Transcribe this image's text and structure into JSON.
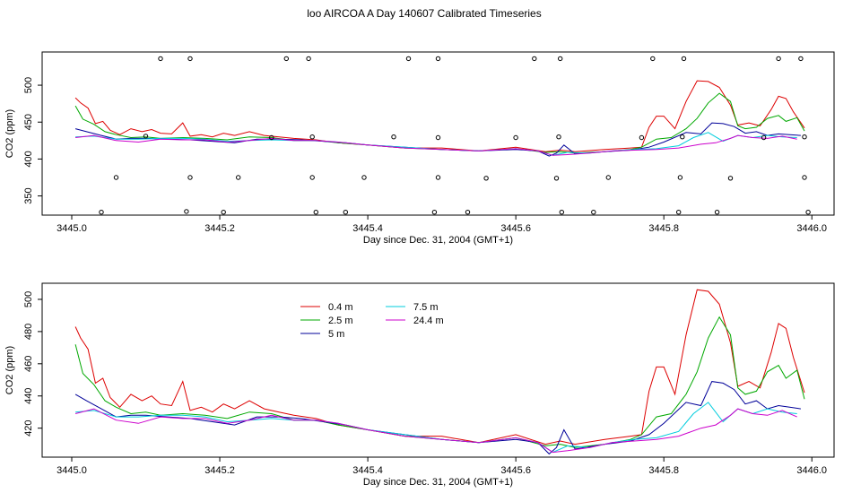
{
  "title": "loo AIRCOA A  Day 140607  Calibrated Timeseries",
  "colors": {
    "0.4 m": "#dd0000",
    "2.5 m": "#00a800",
    "5 m": "#000099",
    "7.5 m": "#00ccdd",
    "24.4 m": "#cc00cc"
  },
  "chart_data": [
    {
      "type": "line",
      "panel": "top",
      "xlabel": "Day since Dec. 31, 2004 (GMT+1)",
      "ylabel": "CO2 (ppm)",
      "xlim": [
        3444.96,
        3446.03
      ],
      "ylim": [
        324,
        545
      ],
      "xticks": [
        3445.0,
        3445.2,
        3445.4,
        3445.6,
        3445.8,
        3446.0
      ],
      "xtick_labels": [
        "3445.0",
        "3445.2",
        "3445.4",
        "3445.6",
        "3445.8",
        "3446.0"
      ],
      "yticks": [
        350,
        400,
        450,
        500
      ],
      "ytick_labels": [
        "350",
        "400",
        "450",
        "500"
      ],
      "series": [
        {
          "key": "0.4 m",
          "x": [
            3445.005,
            3445.012,
            3445.022,
            3445.032,
            3445.042,
            3445.052,
            3445.065,
            3445.08,
            3445.095,
            3445.108,
            3445.12,
            3445.135,
            3445.15,
            3445.16,
            3445.175,
            3445.19,
            3445.205,
            3445.22,
            3445.24,
            3445.26,
            3445.28,
            3445.3,
            3445.33,
            3445.36,
            3445.4,
            3445.45,
            3445.5,
            3445.55,
            3445.6,
            3445.64,
            3445.66,
            3445.68,
            3445.72,
            3445.755,
            3445.77,
            3445.78,
            3445.79,
            3445.8,
            3445.815,
            3445.83,
            3445.845,
            3445.86,
            3445.875,
            3445.89,
            3445.9,
            3445.915,
            3445.93,
            3445.945,
            3445.955,
            3445.965,
            3445.975,
            3445.99
          ],
          "y": [
            483,
            476,
            469,
            448,
            451,
            439,
            433,
            441,
            437,
            440,
            435,
            434,
            449,
            431,
            433,
            430,
            435,
            432,
            437,
            432,
            430,
            428,
            426,
            422,
            419,
            415,
            415,
            411,
            416,
            410,
            412,
            410,
            413,
            415,
            416,
            443,
            458,
            458,
            441,
            478,
            506,
            505,
            497,
            473,
            446,
            449,
            445,
            467,
            485,
            482,
            464,
            442
          ]
        },
        {
          "key": "2.5 m",
          "x": [
            3445.005,
            3445.015,
            3445.03,
            3445.045,
            3445.06,
            3445.08,
            3445.1,
            3445.12,
            3445.15,
            3445.18,
            3445.21,
            3445.24,
            3445.27,
            3445.3,
            3445.33,
            3445.36,
            3445.4,
            3445.45,
            3445.5,
            3445.55,
            3445.6,
            3445.64,
            3445.66,
            3445.68,
            3445.72,
            3445.755,
            3445.77,
            3445.79,
            3445.81,
            3445.83,
            3445.845,
            3445.86,
            3445.875,
            3445.89,
            3445.9,
            3445.91,
            3445.925,
            3445.94,
            3445.955,
            3445.965,
            3445.98,
            3445.99
          ],
          "y": [
            472,
            454,
            447,
            437,
            433,
            429,
            430,
            428,
            429,
            428,
            426,
            430,
            429,
            425,
            425,
            422,
            419,
            415,
            413,
            411,
            414,
            409,
            410,
            408,
            410,
            413,
            416,
            427,
            429,
            441,
            455,
            476,
            489,
            478,
            445,
            441,
            443,
            455,
            459,
            451,
            456,
            438
          ]
        },
        {
          "key": "5 m",
          "x": [
            3445.005,
            3445.02,
            3445.04,
            3445.06,
            3445.08,
            3445.1,
            3445.13,
            3445.16,
            3445.19,
            3445.22,
            3445.25,
            3445.28,
            3445.31,
            3445.34,
            3445.37,
            3445.4,
            3445.45,
            3445.5,
            3445.55,
            3445.6,
            3445.63,
            3445.645,
            3445.655,
            3445.665,
            3445.68,
            3445.72,
            3445.755,
            3445.78,
            3445.8,
            3445.83,
            3445.85,
            3445.865,
            3445.88,
            3445.895,
            3445.91,
            3445.925,
            3445.94,
            3445.955,
            3445.97,
            3445.985
          ],
          "y": [
            441,
            437,
            432,
            427,
            428,
            428,
            427,
            426,
            424,
            422,
            427,
            427,
            426,
            424,
            422,
            419,
            416,
            413,
            411,
            413,
            411,
            404,
            408,
            419,
            407,
            410,
            412,
            416,
            423,
            436,
            434,
            449,
            448,
            444,
            435,
            437,
            432,
            434,
            433,
            432
          ]
        },
        {
          "key": "7.5 m",
          "x": [
            3445.005,
            3445.03,
            3445.06,
            3445.09,
            3445.12,
            3445.15,
            3445.18,
            3445.21,
            3445.24,
            3445.27,
            3445.3,
            3445.33,
            3445.36,
            3445.4,
            3445.45,
            3445.5,
            3445.55,
            3445.6,
            3445.63,
            3445.65,
            3445.67,
            3445.7,
            3445.73,
            3445.76,
            3445.79,
            3445.82,
            3445.84,
            3445.86,
            3445.88,
            3445.9,
            3445.92,
            3445.94,
            3445.96,
            3445.98
          ],
          "y": [
            430,
            431,
            427,
            427,
            428,
            428,
            427,
            424,
            425,
            426,
            425,
            425,
            423,
            419,
            416,
            413,
            411,
            414,
            411,
            405,
            409,
            408,
            411,
            413,
            414,
            418,
            429,
            436,
            424,
            432,
            429,
            432,
            430,
            429
          ]
        },
        {
          "key": "24.4 m",
          "x": [
            3445.005,
            3445.03,
            3445.06,
            3445.09,
            3445.12,
            3445.15,
            3445.18,
            3445.21,
            3445.24,
            3445.27,
            3445.3,
            3445.33,
            3445.36,
            3445.4,
            3445.45,
            3445.5,
            3445.55,
            3445.6,
            3445.63,
            3445.65,
            3445.67,
            3445.7,
            3445.73,
            3445.76,
            3445.79,
            3445.82,
            3445.85,
            3445.87,
            3445.89,
            3445.9,
            3445.92,
            3445.94,
            3445.96,
            3445.98
          ],
          "y": [
            429,
            432,
            425,
            423,
            427,
            426,
            426,
            423,
            425,
            428,
            425,
            425,
            423,
            419,
            415,
            413,
            411,
            414,
            411,
            405,
            406,
            408,
            411,
            412,
            413,
            415,
            420,
            422,
            428,
            432,
            429,
            428,
            431,
            427
          ]
        }
      ],
      "markers": {
        "x": [
          3445.04,
          3445.06,
          3445.1,
          3445.12,
          3445.155,
          3445.16,
          3445.16,
          3445.205,
          3445.225,
          3445.27,
          3445.29,
          3445.32,
          3445.325,
          3445.325,
          3445.33,
          3445.37,
          3445.395,
          3445.435,
          3445.455,
          3445.49,
          3445.495,
          3445.495,
          3445.495,
          3445.535,
          3445.56,
          3445.6,
          3445.625,
          3445.655,
          3445.658,
          3445.66,
          3445.662,
          3445.705,
          3445.725,
          3445.77,
          3445.785,
          3445.82,
          3445.822,
          3445.825,
          3445.827,
          3445.872,
          3445.89,
          3445.935,
          3445.955,
          3445.985,
          3445.99,
          3445.99,
          3445.995
        ],
        "y": [
          328,
          375,
          431,
          536,
          329,
          375,
          536,
          328,
          375,
          429,
          536,
          536,
          430,
          375,
          328,
          328,
          375,
          430,
          536,
          328,
          375,
          429,
          536,
          328,
          374,
          429,
          536,
          374,
          430,
          536,
          328,
          328,
          375,
          429,
          536,
          328,
          375,
          430,
          536,
          328,
          374,
          429,
          536,
          536,
          430,
          375,
          328
        ]
      }
    },
    {
      "type": "line",
      "panel": "bottom",
      "xlabel": "Day since Dec. 31, 2004 (GMT+1)",
      "ylabel": "CO2 (ppm)",
      "xlim": [
        3444.96,
        3446.03
      ],
      "ylim": [
        402,
        510
      ],
      "xticks": [
        3445.0,
        3445.2,
        3445.4,
        3445.6,
        3445.8,
        3446.0
      ],
      "xtick_labels": [
        "3445.0",
        "3445.2",
        "3445.4",
        "3445.6",
        "3445.8",
        "3446.0"
      ],
      "yticks": [
        420,
        440,
        460,
        480,
        500
      ],
      "ytick_labels": [
        "420",
        "440",
        "460",
        "480",
        "500"
      ],
      "legend": {
        "placement": "top-left",
        "entries": [
          "0.4 m",
          "2.5 m",
          "5 m",
          "7.5 m",
          "24.4 m"
        ]
      },
      "series": [
        {
          "key": "0.4 m",
          "x": [
            3445.005,
            3445.012,
            3445.022,
            3445.032,
            3445.042,
            3445.052,
            3445.065,
            3445.08,
            3445.095,
            3445.108,
            3445.12,
            3445.135,
            3445.15,
            3445.16,
            3445.175,
            3445.19,
            3445.205,
            3445.22,
            3445.24,
            3445.26,
            3445.28,
            3445.3,
            3445.33,
            3445.36,
            3445.4,
            3445.45,
            3445.5,
            3445.55,
            3445.6,
            3445.64,
            3445.66,
            3445.68,
            3445.72,
            3445.755,
            3445.77,
            3445.78,
            3445.79,
            3445.8,
            3445.815,
            3445.83,
            3445.845,
            3445.86,
            3445.875,
            3445.89,
            3445.9,
            3445.915,
            3445.93,
            3445.945,
            3445.955,
            3445.965,
            3445.975,
            3445.99
          ],
          "y": [
            483,
            476,
            469,
            448,
            451,
            439,
            433,
            441,
            437,
            440,
            435,
            434,
            449,
            431,
            433,
            430,
            435,
            432,
            437,
            432,
            430,
            428,
            426,
            422,
            419,
            415,
            415,
            411,
            416,
            410,
            412,
            410,
            413,
            415,
            416,
            443,
            458,
            458,
            441,
            478,
            506,
            505,
            497,
            473,
            446,
            449,
            445,
            467,
            485,
            482,
            464,
            442
          ]
        },
        {
          "key": "2.5 m",
          "x": [
            3445.005,
            3445.015,
            3445.03,
            3445.045,
            3445.06,
            3445.08,
            3445.1,
            3445.12,
            3445.15,
            3445.18,
            3445.21,
            3445.24,
            3445.27,
            3445.3,
            3445.33,
            3445.36,
            3445.4,
            3445.45,
            3445.5,
            3445.55,
            3445.6,
            3445.64,
            3445.66,
            3445.68,
            3445.72,
            3445.755,
            3445.77,
            3445.79,
            3445.81,
            3445.83,
            3445.845,
            3445.86,
            3445.875,
            3445.89,
            3445.9,
            3445.91,
            3445.925,
            3445.94,
            3445.955,
            3445.965,
            3445.98,
            3445.99
          ],
          "y": [
            472,
            454,
            447,
            437,
            433,
            429,
            430,
            428,
            429,
            428,
            426,
            430,
            429,
            425,
            425,
            422,
            419,
            415,
            413,
            411,
            414,
            409,
            410,
            408,
            410,
            413,
            416,
            427,
            429,
            441,
            455,
            476,
            489,
            478,
            445,
            441,
            443,
            455,
            459,
            451,
            456,
            438
          ]
        },
        {
          "key": "5 m",
          "x": [
            3445.005,
            3445.02,
            3445.04,
            3445.06,
            3445.08,
            3445.1,
            3445.13,
            3445.16,
            3445.19,
            3445.22,
            3445.25,
            3445.28,
            3445.31,
            3445.34,
            3445.37,
            3445.4,
            3445.45,
            3445.5,
            3445.55,
            3445.6,
            3445.63,
            3445.645,
            3445.655,
            3445.665,
            3445.68,
            3445.72,
            3445.755,
            3445.78,
            3445.8,
            3445.83,
            3445.85,
            3445.865,
            3445.88,
            3445.895,
            3445.91,
            3445.925,
            3445.94,
            3445.955,
            3445.97,
            3445.985
          ],
          "y": [
            441,
            437,
            432,
            427,
            428,
            428,
            427,
            426,
            424,
            422,
            427,
            427,
            426,
            424,
            422,
            419,
            416,
            413,
            411,
            413,
            411,
            404,
            408,
            419,
            407,
            410,
            412,
            416,
            423,
            436,
            434,
            449,
            448,
            444,
            435,
            437,
            432,
            434,
            433,
            432
          ]
        },
        {
          "key": "7.5 m",
          "x": [
            3445.005,
            3445.03,
            3445.06,
            3445.09,
            3445.12,
            3445.15,
            3445.18,
            3445.21,
            3445.24,
            3445.27,
            3445.3,
            3445.33,
            3445.36,
            3445.4,
            3445.45,
            3445.5,
            3445.55,
            3445.6,
            3445.63,
            3445.65,
            3445.67,
            3445.7,
            3445.73,
            3445.76,
            3445.79,
            3445.82,
            3445.84,
            3445.86,
            3445.88,
            3445.9,
            3445.92,
            3445.94,
            3445.96,
            3445.98
          ],
          "y": [
            430,
            431,
            427,
            427,
            428,
            428,
            427,
            424,
            425,
            426,
            425,
            425,
            423,
            419,
            416,
            413,
            411,
            414,
            411,
            405,
            409,
            408,
            411,
            413,
            414,
            418,
            429,
            436,
            424,
            432,
            429,
            432,
            430,
            429
          ]
        },
        {
          "key": "24.4 m",
          "x": [
            3445.005,
            3445.03,
            3445.06,
            3445.09,
            3445.12,
            3445.15,
            3445.18,
            3445.21,
            3445.24,
            3445.27,
            3445.3,
            3445.33,
            3445.36,
            3445.4,
            3445.45,
            3445.5,
            3445.55,
            3445.6,
            3445.63,
            3445.65,
            3445.67,
            3445.7,
            3445.73,
            3445.76,
            3445.79,
            3445.82,
            3445.85,
            3445.87,
            3445.89,
            3445.9,
            3445.92,
            3445.94,
            3445.96,
            3445.98
          ],
          "y": [
            429,
            432,
            425,
            423,
            427,
            426,
            426,
            423,
            425,
            428,
            425,
            425,
            423,
            419,
            415,
            413,
            411,
            414,
            411,
            405,
            406,
            408,
            411,
            412,
            413,
            415,
            420,
            422,
            428,
            432,
            429,
            428,
            431,
            427
          ]
        }
      ]
    }
  ]
}
